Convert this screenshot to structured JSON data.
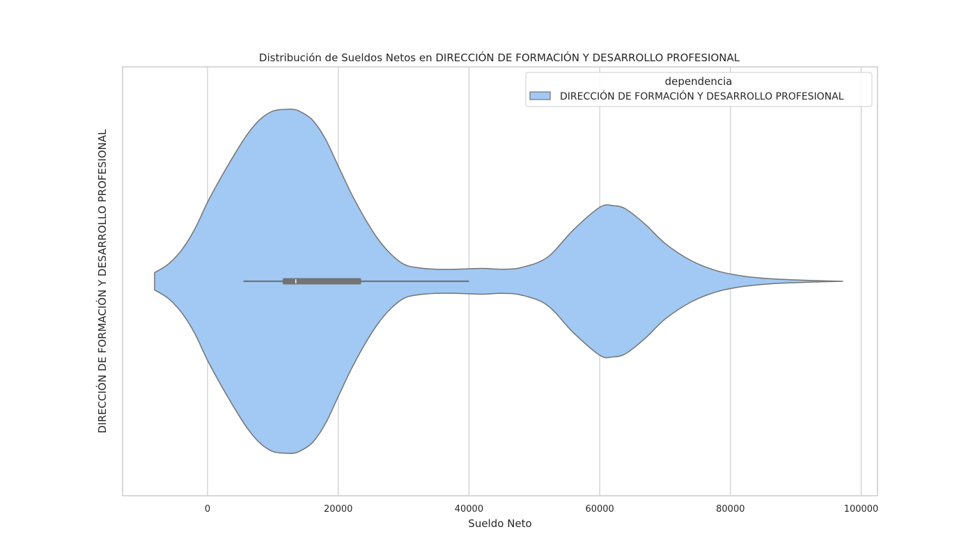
{
  "chart_data": {
    "type": "violin",
    "title": "Distribución de Sueldos Netos en DIRECCIÓN DE FORMACIÓN Y DESARROLLO PROFESIONAL",
    "xlabel": "Sueldo Neto",
    "ylabel": "DIRECCIÓN DE FORMACIÓN Y DESARROLLO PROFESIONAL",
    "xlim": [
      -13000,
      102500
    ],
    "xticks": [
      0,
      20000,
      40000,
      60000,
      80000,
      100000
    ],
    "xtick_labels": [
      "0",
      "20000",
      "40000",
      "60000",
      "80000",
      "100000"
    ],
    "grid": "vertical",
    "legend": {
      "title": "dependencia",
      "position": "top-right",
      "entries": [
        "DIRECCIÓN DE FORMACIÓN Y DESARROLLO PROFESIONAL"
      ]
    },
    "series": [
      {
        "name": "DIRECCIÓN DE FORMACIÓN Y DESARROLLO PROFESIONAL",
        "color": "#a1c9f4",
        "density_x": [
          -8100,
          -6000,
          -4000,
          -2000,
          0,
          2000,
          4000,
          6000,
          8000,
          10000,
          12000,
          13000,
          14000,
          16000,
          18000,
          20000,
          22000,
          24000,
          26000,
          28000,
          30000,
          32000,
          35000,
          38000,
          42000,
          45000,
          48000,
          52000,
          56000,
          60000,
          62000,
          64000,
          67000,
          70000,
          74000,
          78000,
          82000,
          86000,
          90000,
          94000,
          97200
        ],
        "density": [
          0.05,
          0.1,
          0.18,
          0.3,
          0.46,
          0.6,
          0.73,
          0.85,
          0.94,
          0.99,
          1.0,
          1.0,
          0.99,
          0.94,
          0.83,
          0.67,
          0.51,
          0.37,
          0.25,
          0.16,
          0.1,
          0.08,
          0.07,
          0.07,
          0.075,
          0.07,
          0.08,
          0.14,
          0.3,
          0.43,
          0.44,
          0.42,
          0.33,
          0.22,
          0.12,
          0.06,
          0.03,
          0.015,
          0.008,
          0.003,
          0.0
        ],
        "whisker_low": 5500,
        "q1": 11500,
        "median": 13500,
        "q3": 23500,
        "whisker_high": 40000
      }
    ]
  }
}
